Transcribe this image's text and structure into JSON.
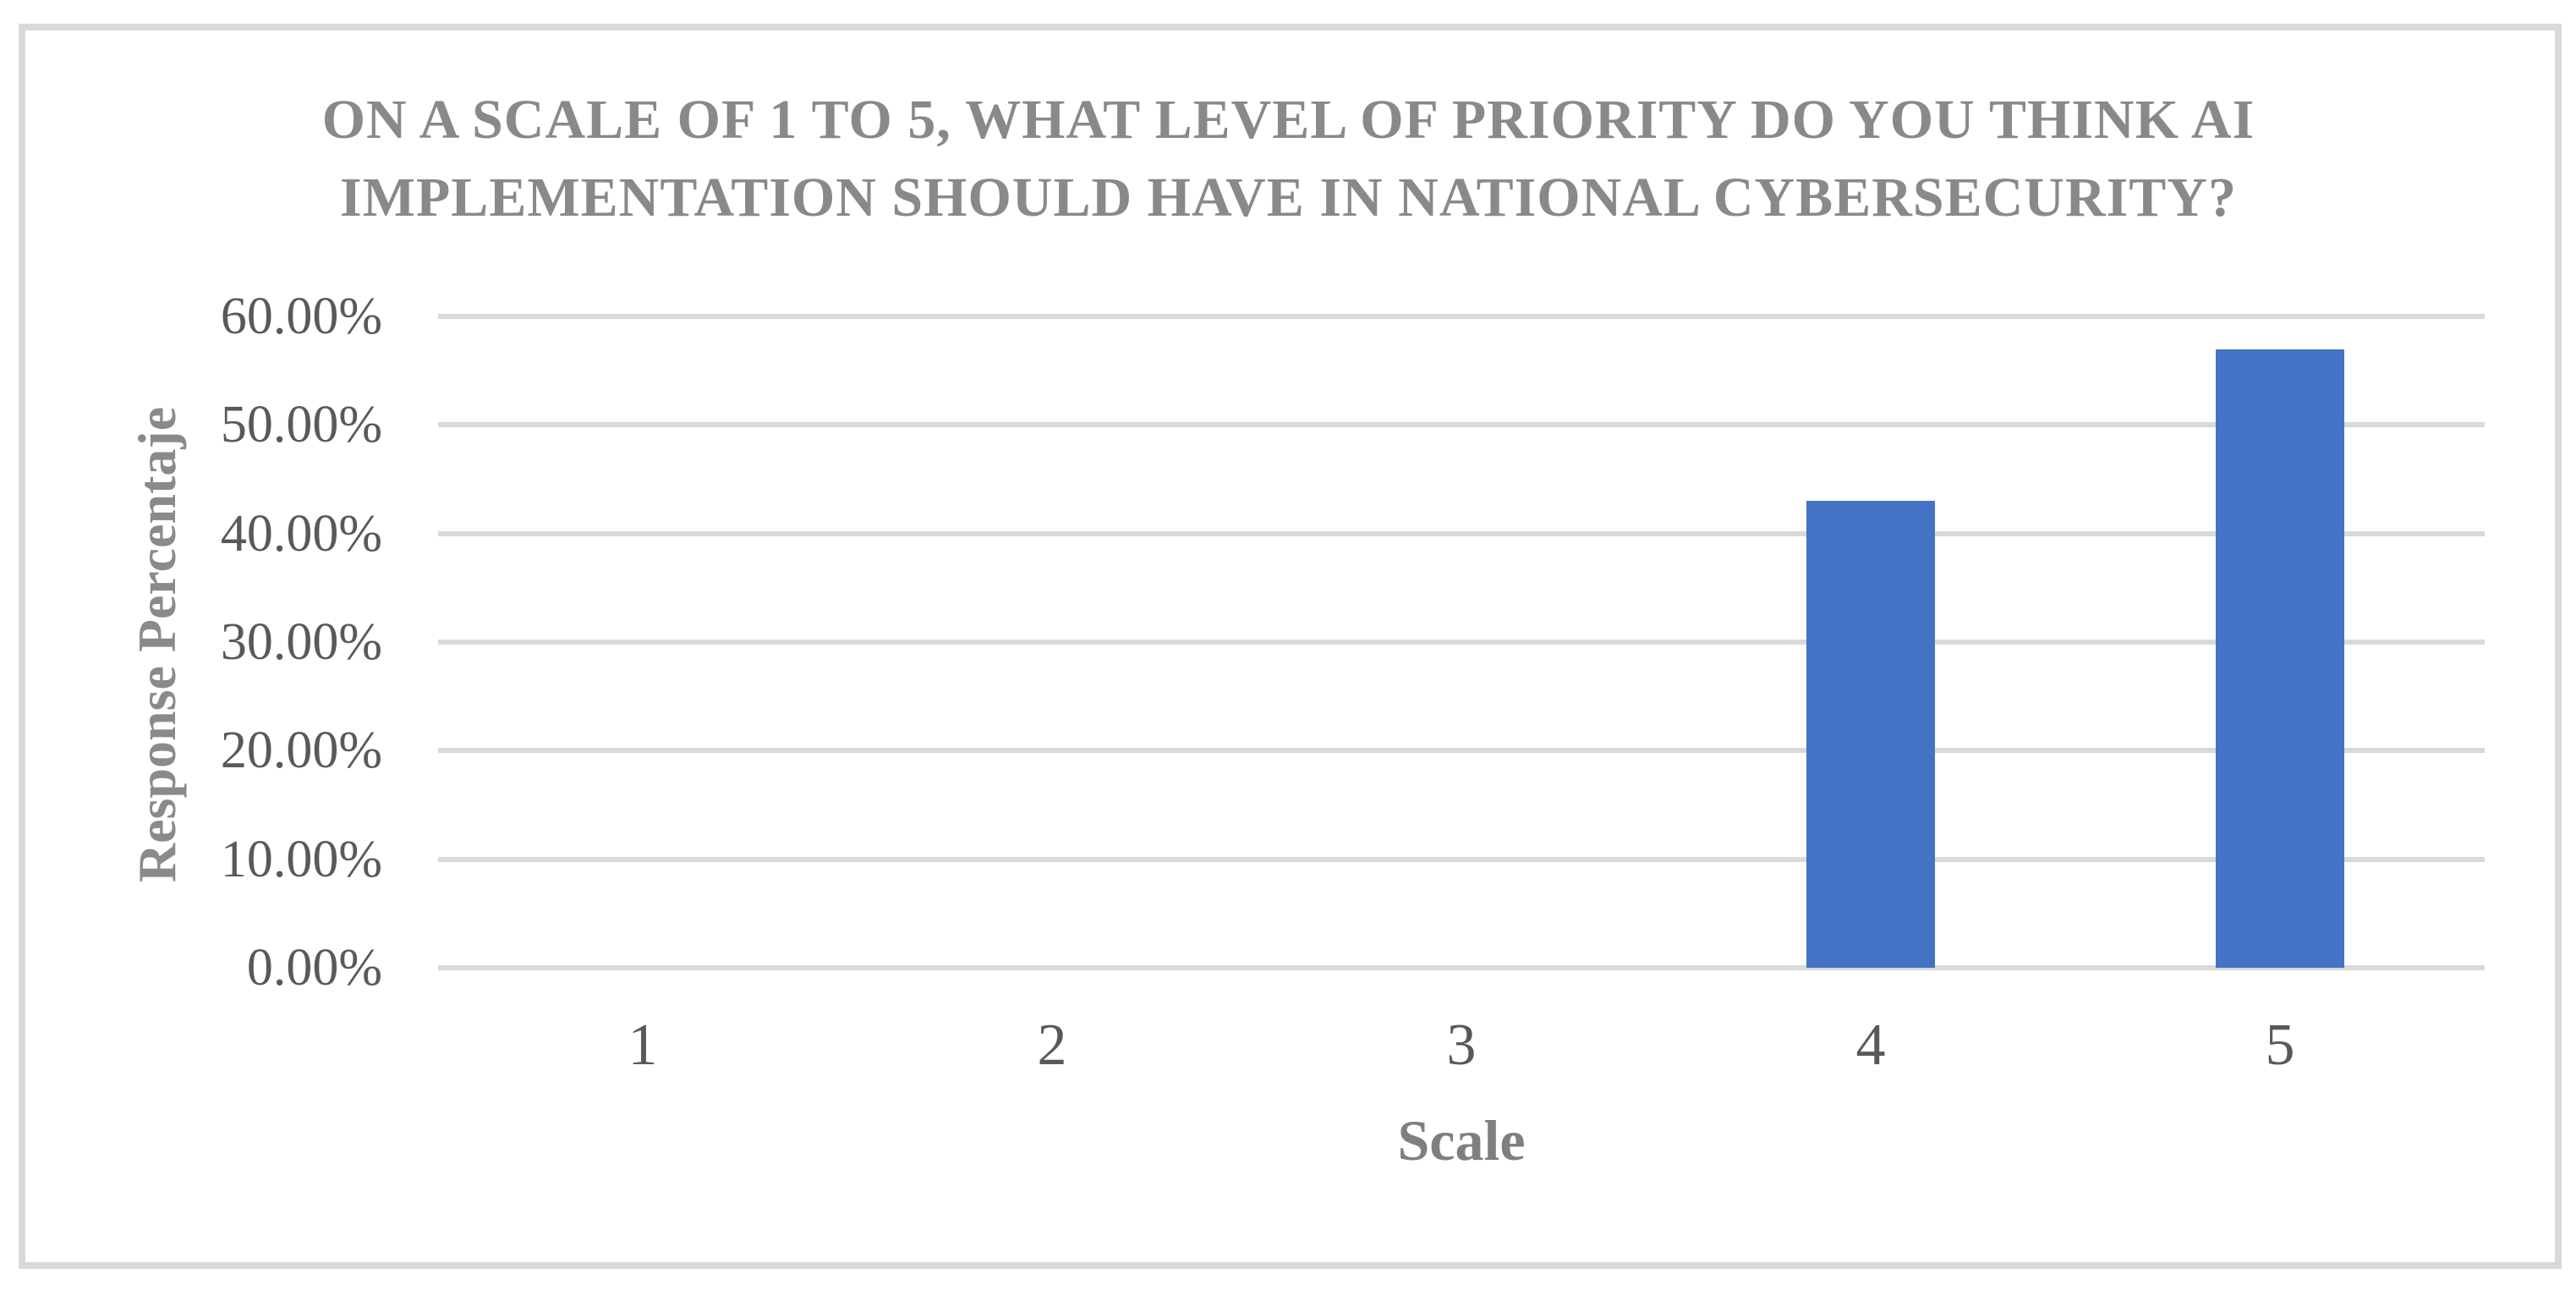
{
  "chart_data": {
    "type": "bar",
    "title": "ON A SCALE OF 1 TO 5, WHAT LEVEL OF PRIORITY DO YOU THINK AI IMPLEMENTATION SHOULD HAVE IN NATIONAL CYBERSECURITY?",
    "title_lines": [
      "ON A SCALE OF 1 TO 5, WHAT LEVEL OF PRIORITY DO YOU THINK AI",
      "IMPLEMENTATION SHOULD HAVE IN NATIONAL CYBERSECURITY?"
    ],
    "categories": [
      "1",
      "2",
      "3",
      "4",
      "5"
    ],
    "values": [
      0,
      0,
      0,
      43,
      57
    ],
    "values_unit": "%",
    "xlabel": "Scale",
    "ylabel": "Response Percentaje",
    "y_axis": {
      "min": 0,
      "max": 60,
      "tick_step": 10,
      "tick_labels": [
        "60.00%",
        "50.00%",
        "40.00%",
        "30.00%",
        "20.00%",
        "10.00%",
        "0.00%"
      ]
    },
    "grid": "horizontal",
    "legend": false,
    "colors": {
      "bar": "#4472C4",
      "gridline": "#D9D9D9",
      "frame_border": "#D9D9D9",
      "title_text": "#898989",
      "axis_title_text": "#7F7F7F",
      "tick_label_text": "#595959",
      "background": "#FFFFFF"
    }
  }
}
